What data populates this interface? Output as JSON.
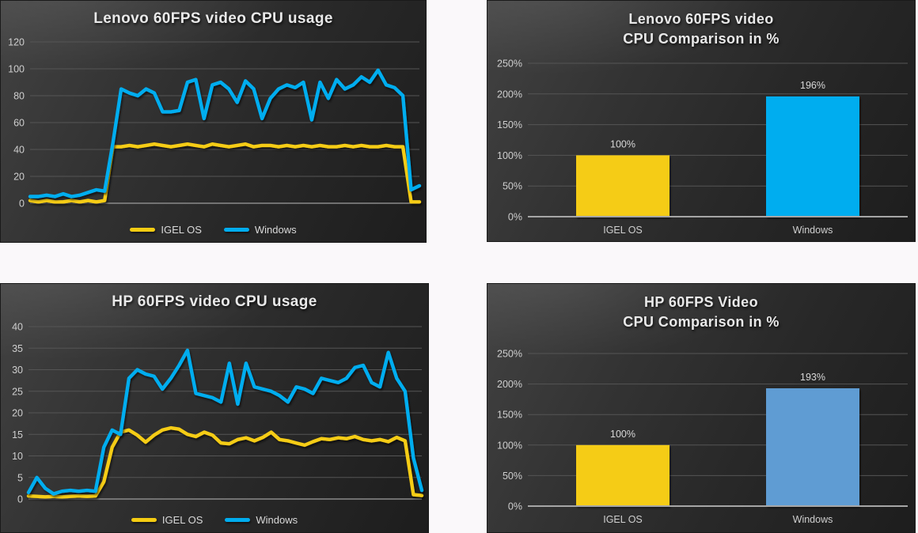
{
  "palette": {
    "igel_yellow": "#F5CC12",
    "windows_cyan": "#00ADEF",
    "windows_steel": "#5E9CD3",
    "panel_background": "#2e2e2e",
    "gridline": "#555555",
    "axis_line": "#a6a6a6",
    "tick_text": "#cfcfcf",
    "title_text": "#e9e9e9",
    "legend_text": "#d9d9d9"
  },
  "legend": {
    "igel_label": "IGEL OS",
    "windows_label": "Windows"
  },
  "chart_data": [
    {
      "id": "lenovo-line",
      "type": "line",
      "title": "Lenovo 60FPS video CPU usage",
      "xlabel": "",
      "ylabel": "",
      "ylim": [
        0,
        120
      ],
      "yticks": [
        0,
        20,
        40,
        60,
        80,
        100,
        120
      ],
      "grid": true,
      "legend_position": "bottom",
      "x_count": 48,
      "series": [
        {
          "name": "IGEL OS",
          "color": "#F5CC12",
          "values": [
            2,
            1,
            2,
            1,
            1,
            2,
            1,
            2,
            1,
            2,
            42,
            42,
            43,
            42,
            43,
            44,
            43,
            42,
            43,
            44,
            43,
            42,
            44,
            43,
            42,
            43,
            44,
            42,
            43,
            43,
            42,
            43,
            42,
            43,
            42,
            43,
            42,
            42,
            43,
            42,
            43,
            42,
            42,
            43,
            42,
            42,
            1,
            1
          ]
        },
        {
          "name": "Windows",
          "color": "#00ADEF",
          "values": [
            5,
            5,
            6,
            5,
            7,
            5,
            6,
            8,
            10,
            9,
            45,
            85,
            82,
            80,
            85,
            82,
            68,
            68,
            69,
            90,
            92,
            63,
            88,
            90,
            85,
            75,
            91,
            85,
            63,
            78,
            85,
            88,
            86,
            90,
            62,
            90,
            78,
            92,
            85,
            88,
            94,
            90,
            99,
            88,
            86,
            80,
            10,
            13
          ]
        }
      ]
    },
    {
      "id": "lenovo-bar",
      "type": "bar",
      "title_lines": [
        "Lenovo 60FPS video",
        "CPU Comparison in %"
      ],
      "xlabel": "",
      "ylabel": "",
      "ylim": [
        0,
        250
      ],
      "ytick_values": [
        0,
        50,
        100,
        150,
        200,
        250
      ],
      "ytick_labels": [
        "0%",
        "50%",
        "100%",
        "150%",
        "200%",
        "250%"
      ],
      "grid": true,
      "categories": [
        "IGEL OS",
        "Windows"
      ],
      "values": [
        100,
        196
      ],
      "value_labels": [
        "100%",
        "196%"
      ],
      "bar_colors": [
        "#F5CC12",
        "#00ADEF"
      ]
    },
    {
      "id": "hp-line",
      "type": "line",
      "title": "HP 60FPS video CPU usage",
      "xlabel": "",
      "ylabel": "",
      "ylim": [
        0,
        40
      ],
      "yticks": [
        0,
        5,
        10,
        15,
        20,
        25,
        30,
        35,
        40
      ],
      "grid": true,
      "legend_position": "bottom",
      "x_count": 48,
      "series": [
        {
          "name": "IGEL OS",
          "color": "#F5CC12",
          "values": [
            0.7,
            0.6,
            0.5,
            0.6,
            0.5,
            0.6,
            0.7,
            0.6,
            0.7,
            4,
            12,
            15.5,
            16,
            14.8,
            13.2,
            14.8,
            16,
            16.5,
            16.2,
            15,
            14.5,
            15.5,
            14.8,
            13,
            12.8,
            13.8,
            14.2,
            13.5,
            14.3,
            15.5,
            13.8,
            13.5,
            13,
            12.5,
            13.3,
            14,
            13.8,
            14.2,
            14,
            14.5,
            13.8,
            13.5,
            13.8,
            13.3,
            14.3,
            13.5,
            1,
            0.8
          ]
        },
        {
          "name": "Windows",
          "color": "#00ADEF",
          "values": [
            1.5,
            5,
            2.5,
            1.2,
            1.8,
            2,
            1.8,
            2,
            1.8,
            12,
            16,
            15,
            28,
            30,
            29,
            28.5,
            25.5,
            28,
            31,
            34.5,
            24.5,
            24,
            23.5,
            22.5,
            31.5,
            22,
            31.5,
            26,
            25.5,
            25,
            24,
            22.5,
            26,
            25.5,
            24.5,
            28,
            27.5,
            27,
            28,
            30.5,
            31,
            27,
            26,
            34,
            28,
            25,
            9.5,
            2
          ]
        }
      ]
    },
    {
      "id": "hp-bar",
      "type": "bar",
      "title_lines": [
        "HP 60FPS Video",
        "CPU Comparison in %"
      ],
      "xlabel": "",
      "ylabel": "",
      "ylim": [
        0,
        250
      ],
      "ytick_values": [
        0,
        50,
        100,
        150,
        200,
        250
      ],
      "ytick_labels": [
        "0%",
        "50%",
        "100%",
        "150%",
        "200%",
        "250%"
      ],
      "grid": true,
      "categories": [
        "IGEL OS",
        "Windows"
      ],
      "values": [
        100,
        193
      ],
      "value_labels": [
        "100%",
        "193%"
      ],
      "bar_colors": [
        "#F5CC12",
        "#5E9CD3"
      ]
    }
  ]
}
